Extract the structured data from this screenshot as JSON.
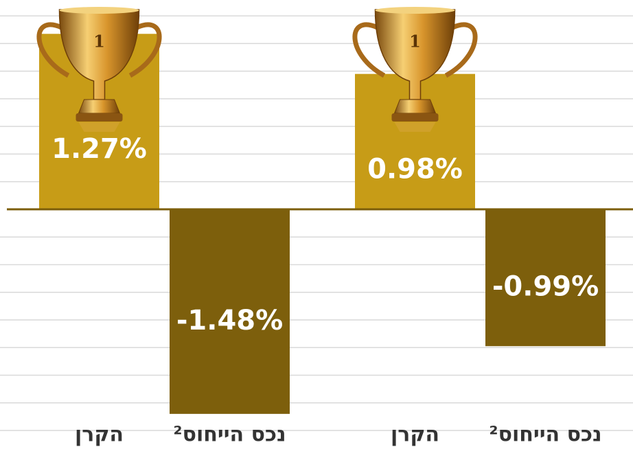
{
  "chart_data": {
    "type": "bar",
    "categories": [
      "הקרן",
      "נכס הייחוס²",
      "הקרן",
      "נכס הייחוס²"
    ],
    "values": [
      1.27,
      -1.48,
      0.98,
      -0.99
    ],
    "value_labels": [
      "1.27%",
      "-1.48%",
      "0.98%",
      "-0.99%"
    ],
    "colors": [
      "#c79c17",
      "#7d5f0c",
      "#c79c17",
      "#7d5f0c"
    ],
    "trophy_label": "1",
    "ylim": [
      -1.6,
      1.5
    ],
    "yticks": [
      -1.6,
      -1.4,
      -1.2,
      -1,
      -0.8,
      -0.6,
      -0.4,
      -0.2,
      0.2,
      0.4,
      0.6,
      0.8,
      1,
      1.2,
      1.4
    ],
    "grid": true
  }
}
